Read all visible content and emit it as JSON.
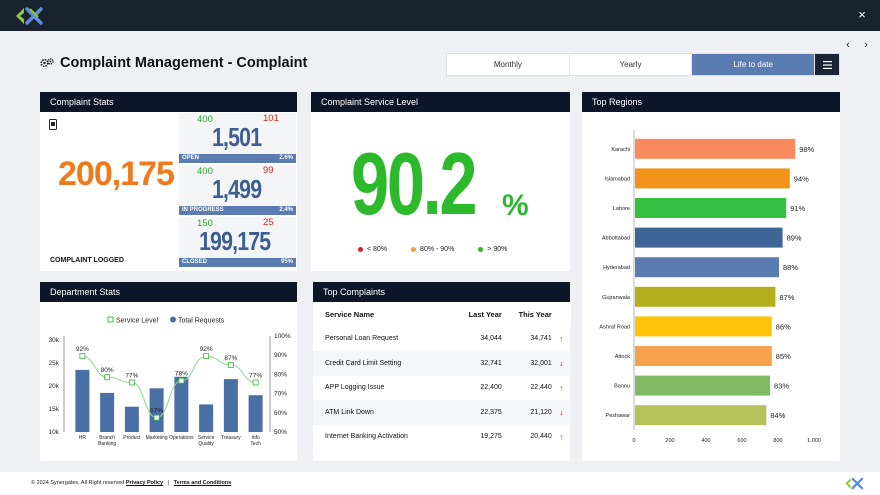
{
  "header": {
    "close_label": "×"
  },
  "nav": {
    "prev": "‹",
    "next": "›"
  },
  "page": {
    "title": "Complaint Management - Complaint"
  },
  "period_tabs": [
    {
      "label": "Monthly",
      "active": false
    },
    {
      "label": "Yearly",
      "active": false
    },
    {
      "label": "Life to date",
      "active": true
    }
  ],
  "complaint_stats": {
    "title": "Complaint Stats",
    "logged_value": "200,175",
    "logged_label": "COMPLAINT LOGGED",
    "blocks": [
      {
        "green": "400",
        "red": "101",
        "value": "1,501",
        "label": "OPEN",
        "pct": "2.6%"
      },
      {
        "green": "400",
        "red": "99",
        "value": "1,499",
        "label": "IN PROGRESS",
        "pct": "2.4%"
      },
      {
        "green": "150",
        "red": "25",
        "value": "199,175",
        "label": "CLOSED",
        "pct": "95%"
      }
    ]
  },
  "service_level": {
    "title": "Complaint Service Level",
    "value": "90.2",
    "unit": "%",
    "legend": [
      {
        "label": "< 80%",
        "color": "#e02020"
      },
      {
        "label": "80% - 90%",
        "color": "#f0a030"
      },
      {
        "label": "> 90%",
        "color": "#2cba2c"
      }
    ]
  },
  "top_regions": {
    "title": "Top Regions",
    "chart_data": {
      "type": "bar",
      "orientation": "horizontal",
      "categories": [
        "Karachi",
        "Islamabad",
        "Lahore",
        "Abbottabad",
        "Hyderabad",
        "Gujranwala",
        "Ashraf Road",
        "Attock",
        "Bannu",
        "Peshawar"
      ],
      "values": [
        890,
        860,
        840,
        820,
        800,
        780,
        760,
        760,
        750,
        730
      ],
      "labels": [
        "98%",
        "94%",
        "91%",
        "89%",
        "88%",
        "87%",
        "86%",
        "85%",
        "83%",
        "84%"
      ],
      "colors": [
        "#f98a5e",
        "#f49319",
        "#33c13f",
        "#3d6696",
        "#5b7cb0",
        "#b5ae1c",
        "#ffc40a",
        "#f6a14b",
        "#81b965",
        "#b5c25a"
      ],
      "xticks": [
        "0",
        "200",
        "400",
        "600",
        "800",
        "1,000"
      ],
      "xlim": [
        0,
        1000
      ]
    }
  },
  "department_stats": {
    "title": "Department Stats",
    "chart_data": {
      "type": "bar",
      "categories": [
        "HR",
        "Branch Banking",
        "Product",
        "Marketing",
        "Operations",
        "Service Quality",
        "Treasury",
        "Info Tech"
      ],
      "series": [
        {
          "name": "Total Requests",
          "type": "bar",
          "values": [
            23500,
            18500,
            15500,
            19500,
            22000,
            16000,
            21500,
            18000
          ],
          "color": "#4a6fa5"
        },
        {
          "name": "Service Level",
          "type": "line",
          "values": [
            92,
            80,
            77,
            57,
            78,
            92,
            87,
            77
          ],
          "labels": [
            "92%",
            "80%",
            "77%",
            "57%",
            "78%",
            "92%",
            "87%",
            "77%"
          ],
          "color": "#37b537"
        }
      ],
      "y_left_ticks": [
        "30k",
        "25k",
        "20k",
        "15k",
        "10k"
      ],
      "y_left_lim": [
        10000,
        30000
      ],
      "y_right_ticks": [
        "100%",
        "90%",
        "80%",
        "70%",
        "60%",
        "50%"
      ],
      "y_right_lim": [
        50,
        100
      ],
      "legend": "top-center"
    }
  },
  "top_complaints": {
    "title": "Top Complaints",
    "columns": [
      "Service Name",
      "Last Year",
      "This Year"
    ],
    "rows": [
      {
        "name": "Personal Loan Request",
        "last": "34,044",
        "this": "34,741",
        "trend": "up"
      },
      {
        "name": "Credit Card Limit Setting",
        "last": "32,741",
        "this": "32,001",
        "trend": "down"
      },
      {
        "name": "APP Logging Issue",
        "last": "22,400",
        "this": "22,440",
        "trend": "up"
      },
      {
        "name": "ATM Link Down",
        "last": "22,375",
        "this": "21,120",
        "trend": "down"
      },
      {
        "name": "Internet Banking Activation",
        "last": "19,275",
        "this": "20,440",
        "trend": "up"
      }
    ]
  },
  "footer": {
    "copyright": "© 2024 Synergates, All Right reserved",
    "privacy": "Privacy Policy",
    "separator": "|",
    "terms": "Terms and Conditions"
  }
}
